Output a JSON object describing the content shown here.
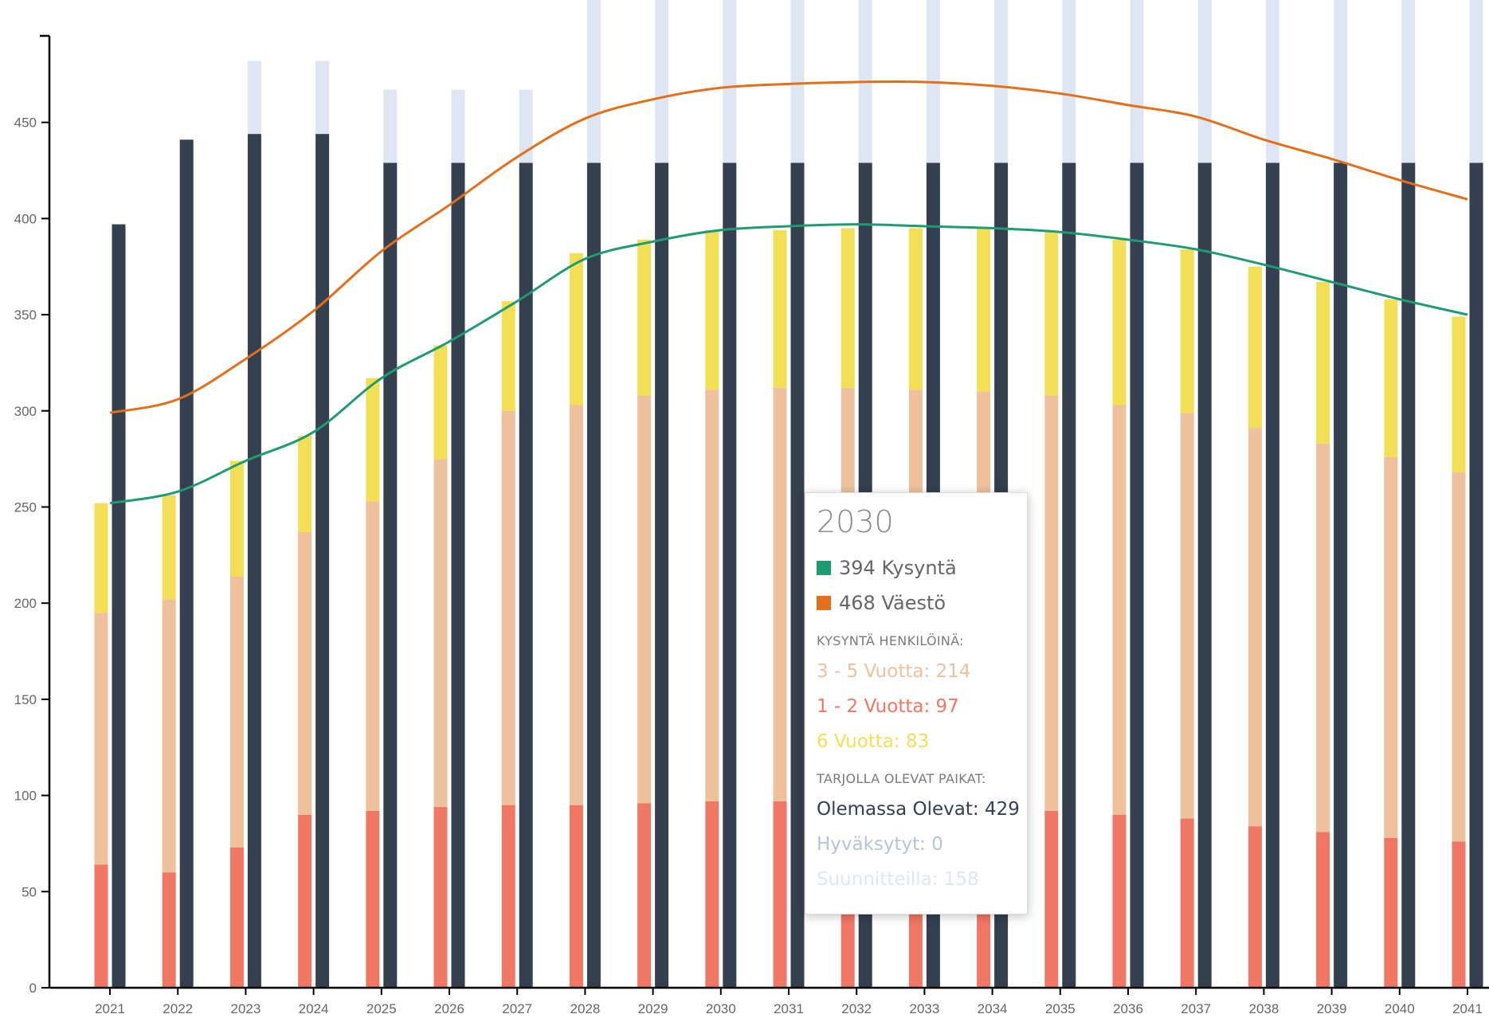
{
  "chart_data": {
    "type": "bar",
    "categories": [
      "2021",
      "2022",
      "2023",
      "2024",
      "2025",
      "2026",
      "2027",
      "2028",
      "2029",
      "2030",
      "2031",
      "2032",
      "2033",
      "2034",
      "2035",
      "2036",
      "2037",
      "2038",
      "2039",
      "2040",
      "2041"
    ],
    "ylim": [
      0,
      495
    ],
    "yticks": [
      0,
      50,
      100,
      150,
      200,
      250,
      300,
      350,
      400,
      450
    ],
    "demand_stack": [
      {
        "name": "1 - 2 Vuotta",
        "color": "#f07763",
        "values": [
          64,
          60,
          73,
          90,
          92,
          94,
          95,
          95,
          96,
          97,
          97,
          98,
          97,
          96,
          92,
          90,
          88,
          84,
          81,
          78,
          76
        ]
      },
      {
        "name": "3 - 5 Vuotta",
        "color": "#eec19c",
        "values": [
          131,
          142,
          141,
          147,
          161,
          181,
          205,
          208,
          212,
          214,
          215,
          214,
          214,
          214,
          216,
          213,
          211,
          207,
          202,
          198,
          192
        ]
      },
      {
        "name": "6 Vuotta",
        "color": "#f3df56",
        "values": [
          57,
          54,
          60,
          50,
          64,
          59,
          57,
          79,
          81,
          83,
          82,
          83,
          84,
          85,
          85,
          86,
          85,
          84,
          84,
          82,
          81
        ]
      }
    ],
    "supply_stack": [
      {
        "name": "Olemassa Olevat",
        "color": "#343f4f",
        "values": [
          397,
          441,
          444,
          444,
          429,
          429,
          429,
          429,
          429,
          429,
          429,
          429,
          429,
          429,
          429,
          429,
          429,
          429,
          429,
          429,
          429
        ]
      },
      {
        "name": "Hyväksytyt",
        "color": "#b6c3dc",
        "values": [
          0,
          0,
          0,
          0,
          0,
          0,
          0,
          0,
          0,
          0,
          0,
          0,
          0,
          0,
          0,
          0,
          0,
          0,
          0,
          0,
          0
        ]
      },
      {
        "name": "Suunnitteilla",
        "color": "#dfe6f3",
        "values": [
          0,
          0,
          38,
          38,
          38,
          38,
          38,
          158,
          158,
          158,
          158,
          158,
          158,
          158,
          158,
          158,
          158,
          158,
          158,
          158,
          158
        ]
      }
    ],
    "lines": [
      {
        "name": "Kysyntä",
        "color": "#1e9b72",
        "values": [
          252,
          258,
          274,
          289,
          317,
          336,
          357,
          379,
          388,
          394,
          396,
          397,
          396,
          395,
          393,
          389,
          384,
          376,
          367,
          358,
          350
        ]
      },
      {
        "name": "Väestö",
        "color": "#e36f1a",
        "values": [
          299,
          306,
          327,
          352,
          383,
          407,
          432,
          452,
          462,
          468,
          470,
          471,
          471,
          469,
          465,
          459,
          453,
          441,
          431,
          420,
          410
        ]
      }
    ]
  },
  "tooltip": {
    "title": "2030",
    "kysynta_label": "394 Kysyntä",
    "kysynta_color": "#1e9b72",
    "vaesto_label": "468 Väestö",
    "vaesto_color": "#e36f1a",
    "section_demand": "KYSYNTÄ HENKILÖINÄ:",
    "line_3_5": "3 - 5 Vuotta: 214",
    "line_1_2": "1 - 2 Vuotta: 97",
    "line_6": "6 Vuotta: 83",
    "section_supply": "TARJOLLA OLEVAT PAIKAT:",
    "line_existing": "Olemassa Olevat: 429",
    "line_approved": "Hyväksytyt: 0",
    "line_planned": "Suunnitteilla: 158"
  }
}
